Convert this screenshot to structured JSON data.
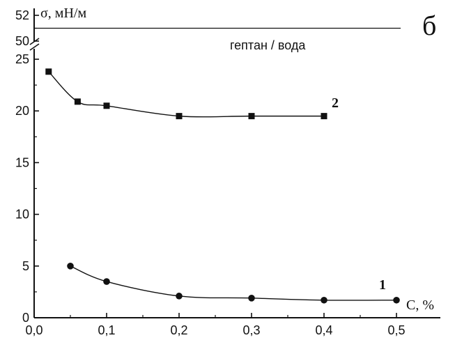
{
  "panel_letter": "б",
  "y_axis_label": "σ, мН/м",
  "x_axis_label": "С, %",
  "reference_line_label": "гептан / вода",
  "colors": {
    "ink": "#111111"
  },
  "chart_data": {
    "type": "line",
    "x_ticks": [
      "0,0",
      "0,1",
      "0,2",
      "0,3",
      "0,4",
      "0,5"
    ],
    "y_ticks_lower": [
      "0",
      "5",
      "10",
      "15",
      "20",
      "25"
    ],
    "y_ticks_upper": [
      "50",
      "52"
    ],
    "xlim": [
      0.0,
      0.55
    ],
    "ylim_lower": [
      0,
      25
    ],
    "ylim_upper": [
      50,
      52
    ],
    "axis_break": "between 25 and 50 on y axis",
    "reference_line": {
      "label": "гептан / вода",
      "y": 51.0
    },
    "series": [
      {
        "name": "1",
        "marker": "circle",
        "x": [
          0.05,
          0.1,
          0.2,
          0.3,
          0.4,
          0.5
        ],
        "y": [
          5.0,
          3.5,
          2.1,
          1.9,
          1.7,
          1.7
        ]
      },
      {
        "name": "2",
        "marker": "square",
        "x": [
          0.02,
          0.06,
          0.1,
          0.2,
          0.3,
          0.4
        ],
        "y": [
          23.8,
          20.9,
          20.5,
          19.5,
          19.5,
          19.5
        ]
      }
    ]
  }
}
